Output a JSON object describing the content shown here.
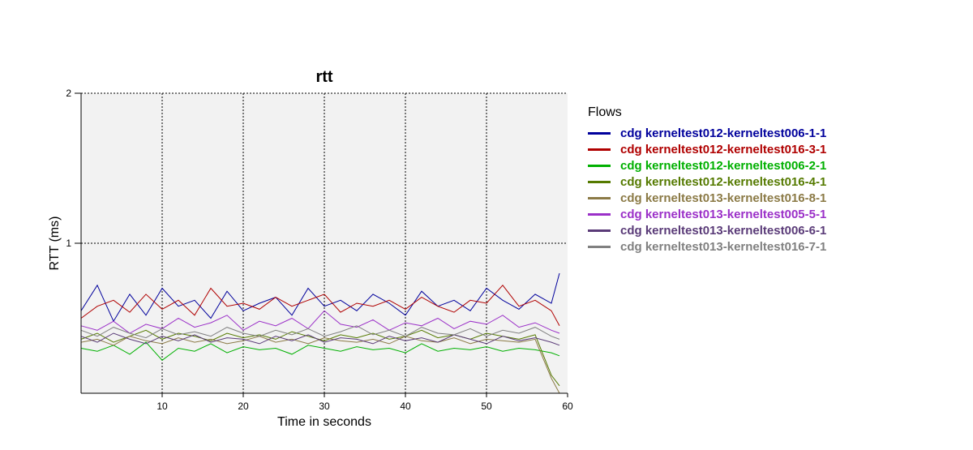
{
  "chart_data": {
    "type": "line",
    "title": "rtt",
    "xlabel": "Time in seconds",
    "ylabel": "RTT (ms)",
    "xlim": [
      0,
      60
    ],
    "ylim": [
      0,
      2
    ],
    "xticks": [
      10,
      20,
      30,
      40,
      50,
      60
    ],
    "yticks": [
      1,
      2
    ],
    "grid": true,
    "legend_title": "Flows",
    "legend_position": "right",
    "series": [
      {
        "name": "cdg kerneltest012-kerneltest006-1-1",
        "color": "#00009c",
        "x": [
          0,
          2,
          4,
          6,
          8,
          10,
          12,
          14,
          16,
          18,
          20,
          22,
          24,
          26,
          28,
          30,
          32,
          34,
          36,
          38,
          40,
          42,
          44,
          46,
          48,
          50,
          52,
          54,
          56,
          58,
          59
        ],
        "y": [
          0.55,
          0.72,
          0.48,
          0.66,
          0.52,
          0.7,
          0.58,
          0.62,
          0.5,
          0.68,
          0.55,
          0.6,
          0.64,
          0.52,
          0.7,
          0.58,
          0.62,
          0.55,
          0.66,
          0.6,
          0.52,
          0.68,
          0.58,
          0.62,
          0.55,
          0.7,
          0.62,
          0.56,
          0.66,
          0.6,
          0.8
        ]
      },
      {
        "name": "cdg kerneltest012-kerneltest016-3-1",
        "color": "#b00000",
        "x": [
          0,
          2,
          4,
          6,
          8,
          10,
          12,
          14,
          16,
          18,
          20,
          22,
          24,
          26,
          28,
          30,
          32,
          34,
          36,
          38,
          40,
          42,
          44,
          46,
          48,
          50,
          52,
          54,
          56,
          58,
          59
        ],
        "y": [
          0.5,
          0.58,
          0.62,
          0.54,
          0.66,
          0.56,
          0.62,
          0.52,
          0.7,
          0.58,
          0.6,
          0.56,
          0.64,
          0.58,
          0.62,
          0.66,
          0.54,
          0.6,
          0.58,
          0.62,
          0.56,
          0.64,
          0.58,
          0.54,
          0.62,
          0.6,
          0.72,
          0.58,
          0.62,
          0.55,
          0.45
        ]
      },
      {
        "name": "cdg kerneltest012-kerneltest006-2-1",
        "color": "#00b000",
        "x": [
          0,
          2,
          4,
          6,
          8,
          10,
          12,
          14,
          16,
          18,
          20,
          22,
          24,
          26,
          28,
          30,
          32,
          34,
          36,
          38,
          40,
          42,
          44,
          46,
          48,
          50,
          52,
          54,
          56,
          58,
          59
        ],
        "y": [
          0.3,
          0.28,
          0.32,
          0.26,
          0.34,
          0.22,
          0.3,
          0.28,
          0.33,
          0.27,
          0.31,
          0.29,
          0.3,
          0.26,
          0.32,
          0.3,
          0.28,
          0.31,
          0.29,
          0.3,
          0.27,
          0.33,
          0.28,
          0.3,
          0.29,
          0.31,
          0.28,
          0.3,
          0.29,
          0.27,
          0.25
        ]
      },
      {
        "name": "cdg kerneltest012-kerneltest016-4-1",
        "color": "#557a00",
        "x": [
          0,
          2,
          4,
          6,
          8,
          10,
          12,
          14,
          16,
          18,
          20,
          22,
          24,
          26,
          28,
          30,
          32,
          34,
          36,
          38,
          40,
          42,
          44,
          46,
          48,
          50,
          52,
          54,
          56,
          58,
          59
        ],
        "y": [
          0.36,
          0.4,
          0.34,
          0.38,
          0.42,
          0.36,
          0.4,
          0.38,
          0.35,
          0.4,
          0.37,
          0.39,
          0.36,
          0.41,
          0.38,
          0.35,
          0.39,
          0.37,
          0.4,
          0.36,
          0.38,
          0.42,
          0.37,
          0.39,
          0.36,
          0.4,
          0.38,
          0.36,
          0.39,
          0.12,
          0.05
        ]
      },
      {
        "name": "cdg kerneltest013-kerneltest016-8-1",
        "color": "#8b7a46",
        "x": [
          0,
          2,
          4,
          6,
          8,
          10,
          12,
          14,
          16,
          18,
          20,
          22,
          24,
          26,
          28,
          30,
          32,
          34,
          36,
          38,
          40,
          42,
          44,
          46,
          48,
          50,
          52,
          54,
          56,
          58,
          59
        ],
        "y": [
          0.34,
          0.36,
          0.32,
          0.38,
          0.35,
          0.33,
          0.37,
          0.34,
          0.36,
          0.33,
          0.35,
          0.38,
          0.34,
          0.36,
          0.33,
          0.37,
          0.35,
          0.34,
          0.36,
          0.33,
          0.38,
          0.35,
          0.34,
          0.37,
          0.33,
          0.36,
          0.35,
          0.34,
          0.36,
          0.1,
          0.0
        ]
      },
      {
        "name": "cdg kerneltest013-kerneltest005-5-1",
        "color": "#9b30c8",
        "x": [
          0,
          2,
          4,
          6,
          8,
          10,
          12,
          14,
          16,
          18,
          20,
          22,
          24,
          26,
          28,
          30,
          32,
          34,
          36,
          38,
          40,
          42,
          44,
          46,
          48,
          50,
          52,
          54,
          56,
          58,
          59
        ],
        "y": [
          0.45,
          0.42,
          0.48,
          0.4,
          0.46,
          0.43,
          0.5,
          0.44,
          0.47,
          0.52,
          0.42,
          0.48,
          0.45,
          0.5,
          0.43,
          0.55,
          0.46,
          0.44,
          0.49,
          0.42,
          0.47,
          0.45,
          0.5,
          0.43,
          0.48,
          0.46,
          0.52,
          0.44,
          0.47,
          0.42,
          0.4
        ]
      },
      {
        "name": "cdg kerneltest013-kerneltest006-6-1",
        "color": "#5a3b78",
        "x": [
          0,
          2,
          4,
          6,
          8,
          10,
          12,
          14,
          16,
          18,
          20,
          22,
          24,
          26,
          28,
          30,
          32,
          34,
          36,
          38,
          40,
          42,
          44,
          46,
          48,
          50,
          52,
          54,
          56,
          58,
          59
        ],
        "y": [
          0.38,
          0.34,
          0.4,
          0.36,
          0.33,
          0.38,
          0.35,
          0.39,
          0.34,
          0.37,
          0.36,
          0.33,
          0.38,
          0.35,
          0.39,
          0.34,
          0.37,
          0.36,
          0.33,
          0.38,
          0.35,
          0.37,
          0.34,
          0.39,
          0.36,
          0.33,
          0.38,
          0.35,
          0.37,
          0.34,
          0.32
        ]
      },
      {
        "name": "cdg kerneltest013-kerneltest016-7-1",
        "color": "#808080",
        "x": [
          0,
          2,
          4,
          6,
          8,
          10,
          12,
          14,
          16,
          18,
          20,
          22,
          24,
          26,
          28,
          30,
          32,
          34,
          36,
          38,
          40,
          42,
          44,
          46,
          48,
          50,
          52,
          54,
          56,
          58,
          59
        ],
        "y": [
          0.42,
          0.38,
          0.44,
          0.4,
          0.37,
          0.43,
          0.39,
          0.41,
          0.38,
          0.44,
          0.4,
          0.38,
          0.42,
          0.39,
          0.43,
          0.38,
          0.41,
          0.45,
          0.39,
          0.42,
          0.38,
          0.44,
          0.4,
          0.39,
          0.43,
          0.38,
          0.42,
          0.4,
          0.44,
          0.38,
          0.36
        ]
      }
    ]
  }
}
